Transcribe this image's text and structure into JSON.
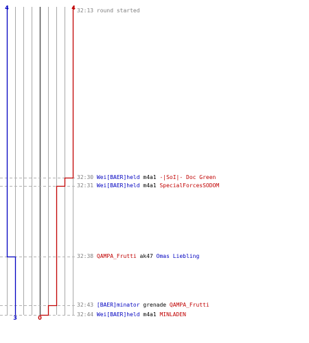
{
  "colors": {
    "team_a": "#0000c0",
    "team_b": "#c00000",
    "grid": "#a8a8a8",
    "grid_center": "#555555",
    "dash": "#b0b0b0",
    "time": "#808080",
    "text": "#000000"
  },
  "chart_data": {
    "type": "line",
    "series": [
      {
        "color": "blue",
        "start_count": "4",
        "end_count": "3",
        "steps": [
          [
            "32:13",
            4
          ],
          [
            "32:38",
            3
          ],
          [
            "32:44",
            3
          ]
        ]
      },
      {
        "color": "red",
        "start_count": "4",
        "end_count": "0",
        "steps": [
          [
            "32:13",
            4
          ],
          [
            "32:30",
            3
          ],
          [
            "32:31",
            2
          ],
          [
            "32:43",
            1
          ],
          [
            "32:44",
            0
          ]
        ]
      }
    ]
  },
  "events": [
    {
      "time": "32:13",
      "text": "round started",
      "kind": "start"
    },
    {
      "time": "32:30",
      "killer": "Wei[BAER]held",
      "killer_team": "blue",
      "weapon": "m4a1",
      "victim": "-|SoI|- Doc Green",
      "victim_team": "red"
    },
    {
      "time": "32:31",
      "killer": "Wei[BAER]held",
      "killer_team": "blue",
      "weapon": "m4a1",
      "victim": "SpecialForcesSODOM",
      "victim_team": "red"
    },
    {
      "time": "32:38",
      "killer": "QAMPA_Frutti",
      "killer_team": "red",
      "weapon": "ak47",
      "victim": "Omas Liebling",
      "victim_team": "blue"
    },
    {
      "time": "32:43",
      "killer": "[BAER]minator",
      "killer_team": "blue",
      "weapon": "grenade",
      "victim": "QAMPA_Frutti",
      "victim_team": "red"
    },
    {
      "time": "32:44",
      "killer": "Wei[BAER]held",
      "killer_team": "blue",
      "weapon": "m4a1",
      "victim": "MINLADEN",
      "victim_team": "red"
    }
  ]
}
